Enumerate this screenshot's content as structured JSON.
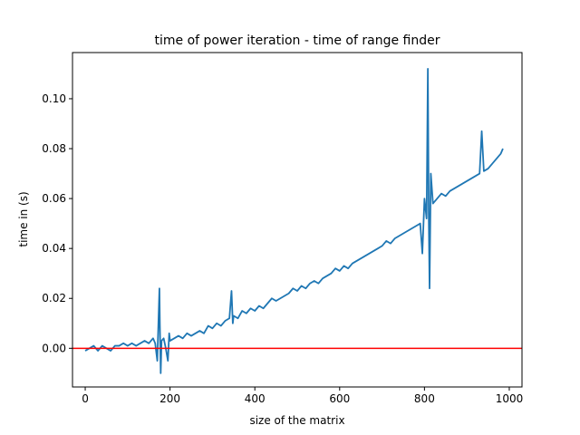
{
  "chart_data": {
    "type": "line",
    "title": "time of power iteration - time of range finder",
    "xlabel": "size of the matrix",
    "ylabel": "time in (s)",
    "xlim": [
      -30,
      1030
    ],
    "ylim": [
      -0.0155,
      0.1185
    ],
    "x_ticks": [
      0,
      200,
      400,
      600,
      800,
      1000
    ],
    "x_tick_labels": [
      "0",
      "200",
      "400",
      "600",
      "800",
      "1000"
    ],
    "y_ticks": [
      0.0,
      0.02,
      0.04,
      0.06,
      0.08,
      0.1
    ],
    "y_tick_labels": [
      "0.00",
      "0.02",
      "0.04",
      "0.06",
      "0.08",
      "0.10"
    ],
    "grid": false,
    "series": [
      {
        "color": "#1f77b4",
        "x": [
          0,
          10,
          20,
          30,
          40,
          50,
          60,
          70,
          80,
          90,
          100,
          110,
          120,
          130,
          140,
          150,
          160,
          165,
          170,
          175,
          176,
          178,
          180,
          185,
          190,
          195,
          198,
          200,
          210,
          220,
          230,
          240,
          250,
          260,
          270,
          280,
          290,
          300,
          310,
          320,
          330,
          340,
          345,
          348,
          350,
          360,
          370,
          380,
          390,
          400,
          410,
          420,
          430,
          440,
          450,
          460,
          470,
          480,
          490,
          500,
          510,
          520,
          530,
          540,
          550,
          560,
          570,
          580,
          590,
          600,
          610,
          620,
          630,
          640,
          650,
          660,
          670,
          680,
          690,
          700,
          710,
          720,
          730,
          740,
          750,
          760,
          770,
          780,
          790,
          795,
          800,
          805,
          808,
          810,
          812,
          815,
          820,
          830,
          840,
          850,
          860,
          870,
          880,
          890,
          900,
          910,
          920,
          930,
          935,
          940,
          950,
          960,
          970,
          980,
          985
        ],
        "y": [
          -0.001,
          0.0,
          0.001,
          -0.001,
          0.001,
          0.0,
          -0.001,
          0.001,
          0.001,
          0.002,
          0.001,
          0.002,
          0.001,
          0.002,
          0.003,
          0.002,
          0.004,
          0.002,
          -0.005,
          0.024,
          0.01,
          -0.01,
          0.003,
          0.004,
          0.0,
          -0.005,
          0.006,
          0.003,
          0.004,
          0.005,
          0.004,
          0.006,
          0.005,
          0.006,
          0.007,
          0.006,
          0.009,
          0.008,
          0.01,
          0.009,
          0.011,
          0.012,
          0.023,
          0.01,
          0.013,
          0.012,
          0.015,
          0.014,
          0.016,
          0.015,
          0.017,
          0.016,
          0.018,
          0.02,
          0.019,
          0.02,
          0.021,
          0.022,
          0.024,
          0.023,
          0.025,
          0.024,
          0.026,
          0.027,
          0.026,
          0.028,
          0.029,
          0.03,
          0.032,
          0.031,
          0.033,
          0.032,
          0.034,
          0.035,
          0.036,
          0.037,
          0.038,
          0.039,
          0.04,
          0.041,
          0.043,
          0.042,
          0.044,
          0.045,
          0.046,
          0.047,
          0.048,
          0.049,
          0.05,
          0.038,
          0.06,
          0.052,
          0.112,
          0.055,
          0.024,
          0.07,
          0.058,
          0.06,
          0.062,
          0.061,
          0.063,
          0.064,
          0.065,
          0.066,
          0.067,
          0.068,
          0.069,
          0.07,
          0.087,
          0.071,
          0.072,
          0.074,
          0.076,
          0.078,
          0.08
        ]
      },
      {
        "color": "#ff0000",
        "x": [
          -30,
          1030
        ],
        "y": [
          0,
          0
        ]
      }
    ]
  }
}
